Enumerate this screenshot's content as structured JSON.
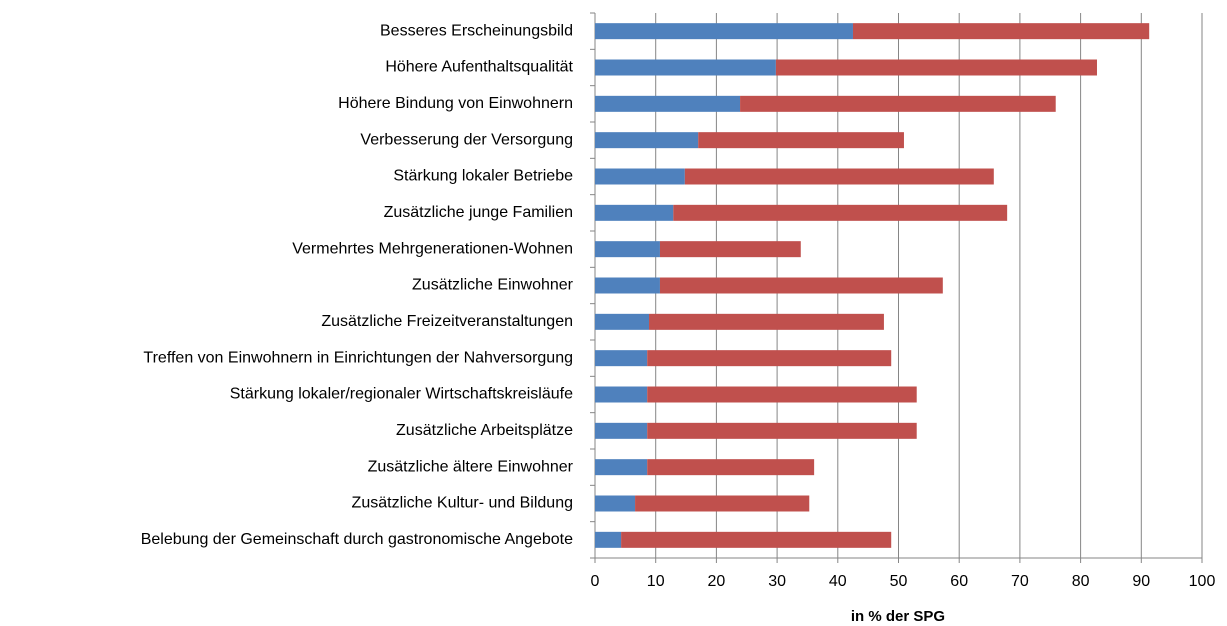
{
  "chart_data": {
    "type": "stacked_barh",
    "x_label": "in % der SPG",
    "categories": [
      "Besseres Erscheinungsbild",
      "Höhere Aufenthaltsqualität",
      "Höhere Bindung von Einwohnern",
      "Verbesserung der Versorgung",
      "Stärkung lokaler Betriebe",
      "Zusätzliche junge Familien",
      "Vermehrtes Mehrgenerationen-Wohnen",
      "Zusätzliche Einwohner",
      "Zusätzliche Freizeitveranstaltungen",
      "Treffen von Einwohnern in Einrichtungen der Nahversorgung",
      "Stärkung lokaler/regionaler Wirtschaftskreisläufe",
      "Zusätzliche Arbeitsplätze",
      "Zusätzliche ältere Einwohner",
      "Zusätzliche Kultur- und Bildung",
      "Belebung der Gemeinschaft durch gastronomische Angebote"
    ],
    "series": [
      {
        "color": "#4f81bd",
        "values": [
          42.5,
          29.8,
          23.9,
          17.0,
          14.8,
          12.9,
          10.7,
          10.7,
          8.9,
          8.6,
          8.6,
          8.6,
          8.6,
          6.6,
          4.3
        ]
      },
      {
        "color": "#c0504d",
        "values": [
          48.8,
          52.9,
          52.0,
          33.9,
          50.9,
          55.0,
          23.2,
          46.6,
          38.7,
          40.2,
          44.4,
          44.4,
          27.5,
          28.7,
          44.5
        ]
      }
    ],
    "xlim": [
      0,
      100
    ],
    "xticks": [
      0,
      10,
      20,
      30,
      40,
      50,
      60,
      70,
      80,
      90,
      100
    ],
    "grid": true
  }
}
